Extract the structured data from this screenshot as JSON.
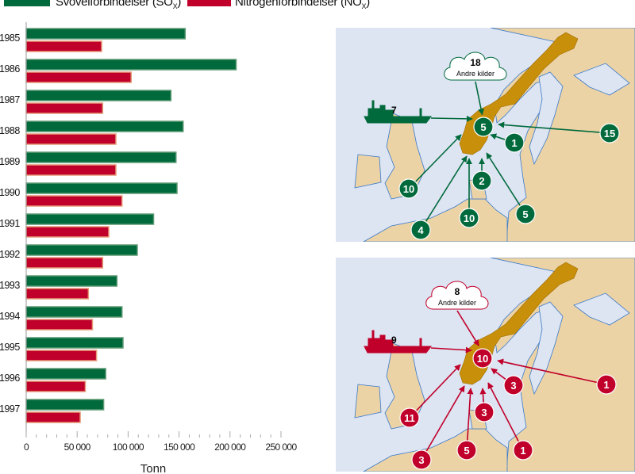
{
  "legend": {
    "sox": {
      "label": "Svovelforbindelser (SO",
      "sub": "X",
      "close": ")",
      "color": "#006a3c"
    },
    "nox": {
      "label": "Nitrogenforbindelser (NO",
      "sub": "X",
      "close": ")",
      "color": "#c0002a"
    }
  },
  "chart_data": {
    "type": "bar",
    "orientation": "horizontal",
    "categories": [
      "1985",
      "1986",
      "1987",
      "1988",
      "1989",
      "1990",
      "1991",
      "1992",
      "1993",
      "1994",
      "1995",
      "1996",
      "1997"
    ],
    "series": [
      {
        "name": "Svovelforbindelser (SOX)",
        "color": "#006a3c",
        "values": [
          156000,
          206000,
          142000,
          154000,
          147000,
          148000,
          125000,
          109000,
          89000,
          94000,
          95000,
          78000,
          76000
        ]
      },
      {
        "name": "Nitrogenforbindelser (NOX)",
        "color": "#c0002a",
        "values": [
          74000,
          103000,
          75000,
          88000,
          88000,
          94000,
          81000,
          75000,
          61000,
          65000,
          69000,
          58000,
          53000
        ]
      }
    ],
    "xlabel": "Tonn",
    "xlim": [
      0,
      250000
    ],
    "xticks": [
      0,
      50000,
      100000,
      150000,
      200000,
      250000
    ],
    "xtick_labels": [
      "0",
      "50 000",
      "100 000",
      "150 000",
      "200 000",
      "250 000"
    ],
    "grid": false,
    "legend_position": "top"
  },
  "maps": {
    "sox": {
      "color": "#006a3c",
      "cloud": {
        "value": "18",
        "label": "Andre kilder"
      },
      "ship": "7",
      "circles": [
        "5",
        "1",
        "15",
        "10",
        "2",
        "4",
        "10",
        "5"
      ]
    },
    "nox": {
      "color": "#c0002a",
      "cloud": {
        "value": "8",
        "label": "Andre kilder"
      },
      "ship": "9",
      "circles": [
        "10",
        "3",
        "1",
        "11",
        "3",
        "3",
        "5",
        "1"
      ]
    },
    "norway_color": "#c8900a",
    "land_color": "#ecd3a6",
    "sea_color": "#dde4f2"
  }
}
